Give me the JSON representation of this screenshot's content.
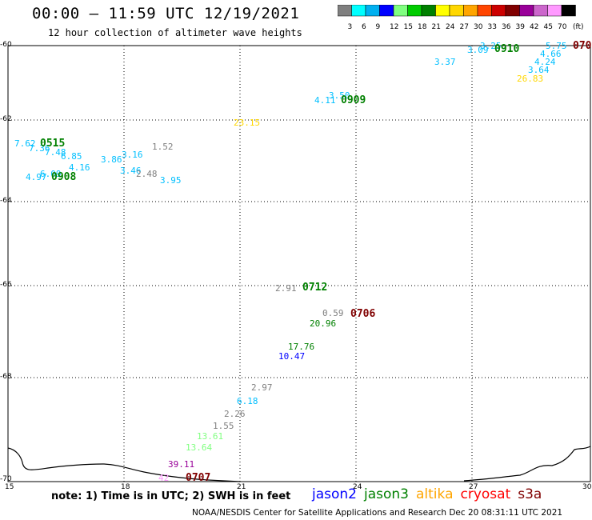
{
  "header": {
    "title": "00:00 – 11:59 UTC 12/19/2021",
    "subtitle": "12 hour collection of altimeter wave heights"
  },
  "colorbar": {
    "unit": "(ft)",
    "ticks": [
      "3",
      "6",
      "9",
      "12",
      "15",
      "18",
      "21",
      "24",
      "27",
      "30",
      "33",
      "36",
      "39",
      "42",
      "45",
      "70"
    ],
    "colors": [
      "#7f7f7f",
      "#00ffff",
      "#00b0f0",
      "#0000ff",
      "#80ff80",
      "#00cc00",
      "#008000",
      "#ffff00",
      "#ffd700",
      "#ffa500",
      "#ff4500",
      "#cc0000",
      "#800000",
      "#990099",
      "#cc66cc",
      "#ff99ff",
      "#000000"
    ]
  },
  "axes": {
    "y_ticks": [
      "-60",
      "-62",
      "-64",
      "-66",
      "-68",
      "-70"
    ],
    "x_ticks": [
      "15",
      "18",
      "21",
      "24",
      "27",
      "30"
    ]
  },
  "values": [
    {
      "text": "7.62",
      "color": "#00bfff"
    },
    {
      "text": "7.36",
      "color": "#00bfff"
    },
    {
      "text": "7.48",
      "color": "#00bfff"
    },
    {
      "text": "6.85",
      "color": "#00bfff"
    },
    {
      "text": "3.86",
      "color": "#00bfff"
    },
    {
      "text": "3.16",
      "color": "#00bfff"
    },
    {
      "text": "1.52",
      "color": "#7f7f7f"
    },
    {
      "text": "4.16",
      "color": "#00bfff"
    },
    {
      "text": "3.46",
      "color": "#00bfff"
    },
    {
      "text": "2.48",
      "color": "#7f7f7f"
    },
    {
      "text": "6.09",
      "color": "#00bfff"
    },
    {
      "text": "4.97",
      "color": "#00bfff"
    },
    {
      "text": "3.95",
      "color": "#00bfff"
    },
    {
      "text": "23.15",
      "color": "#ffd700"
    },
    {
      "text": "3.50",
      "color": "#00bfff"
    },
    {
      "text": "4.11",
      "color": "#00bfff"
    },
    {
      "text": "3.37",
      "color": "#00bfff"
    },
    {
      "text": "3.09",
      "color": "#00bfff"
    },
    {
      "text": "3.25",
      "color": "#00bfff"
    },
    {
      "text": "5.75",
      "color": "#00bfff"
    },
    {
      "text": "4.66",
      "color": "#00bfff"
    },
    {
      "text": "4.24",
      "color": "#00bfff"
    },
    {
      "text": "3.64",
      "color": "#00bfff"
    },
    {
      "text": "26.83",
      "color": "#ffd700"
    },
    {
      "text": "2.91",
      "color": "#7f7f7f"
    },
    {
      "text": "0.59",
      "color": "#7f7f7f"
    },
    {
      "text": "20.96",
      "color": "#008000"
    },
    {
      "text": "17.76",
      "color": "#008000"
    },
    {
      "text": "10.47",
      "color": "#0000ff"
    },
    {
      "text": "2.97",
      "color": "#7f7f7f"
    },
    {
      "text": "6.18",
      "color": "#00bfff"
    },
    {
      "text": "2.26",
      "color": "#7f7f7f"
    },
    {
      "text": "1.55",
      "color": "#7f7f7f"
    },
    {
      "text": "13.61",
      "color": "#80ff80"
    },
    {
      "text": "13.64",
      "color": "#80ff80"
    },
    {
      "text": "39.11",
      "color": "#990099"
    },
    {
      "text": "42",
      "color": "#ff99ff"
    }
  ],
  "pass_codes": [
    {
      "text": "0515",
      "color": "#008000"
    },
    {
      "text": "0908",
      "color": "#008000"
    },
    {
      "text": "0909",
      "color": "#008000"
    },
    {
      "text": "0910",
      "color": "#008000"
    },
    {
      "text": "070",
      "color": "#800000"
    },
    {
      "text": "0712",
      "color": "#008000"
    },
    {
      "text": "0706",
      "color": "#800000"
    },
    {
      "text": "0707",
      "color": "#800000"
    }
  ],
  "footer": {
    "note": "note: 1) Time is in UTC; 2) SWH is in feet",
    "satellites": [
      {
        "name": "jason2",
        "color": "#0000ff"
      },
      {
        "name": "jason3",
        "color": "#008000"
      },
      {
        "name": "altika",
        "color": "#ffa500"
      },
      {
        "name": "cryosat",
        "color": "#ff0000"
      },
      {
        "name": "s3a",
        "color": "#800000"
      }
    ],
    "credit": "NOAA/NESDIS Center for Satellite Applications and Research     Dec 20 08:31:11 UTC 2021"
  }
}
